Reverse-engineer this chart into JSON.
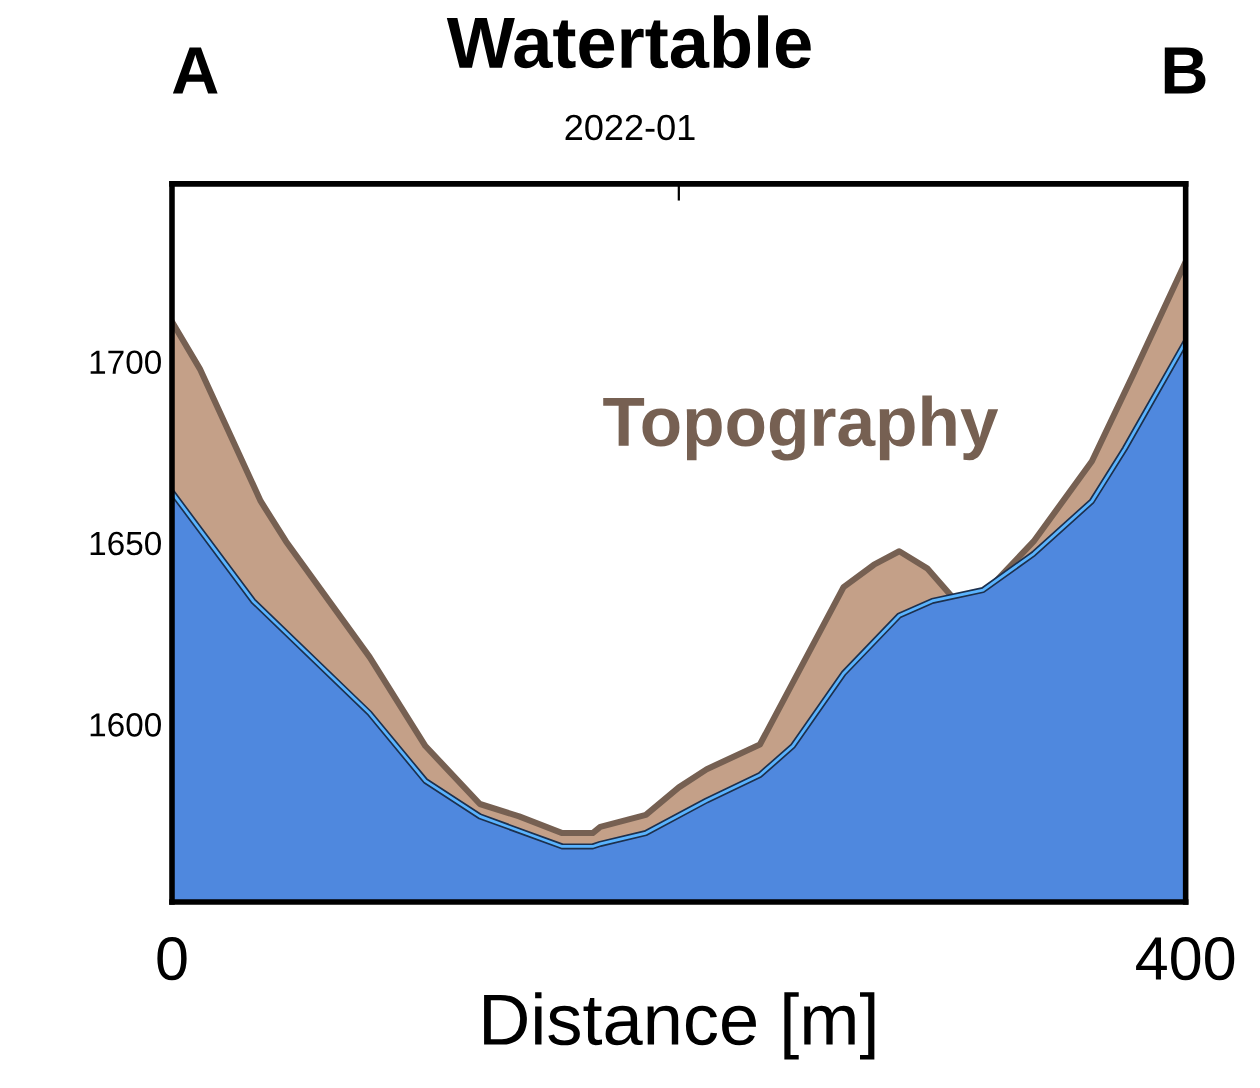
{
  "chart_data": {
    "type": "area",
    "title": "Watertable",
    "subtitle": "2022-01",
    "xlabel": "Distance [m]",
    "annotations": [
      "A",
      "B"
    ],
    "xlim": [
      0,
      400
    ],
    "xticks": [
      0,
      {
        "value": 200,
        "label": null
      },
      400
    ],
    "ylim": [
      1551,
      1749
    ],
    "yticks": [
      1600,
      1650,
      1700
    ],
    "grid": false,
    "legend": false,
    "series": [
      {
        "name": "Topography",
        "color": "#c4a088",
        "x": [
          0,
          11,
          35,
          45,
          78,
          100,
          121.5,
          137,
          154,
          166,
          169,
          187,
          200,
          211,
          232,
          265,
          277,
          287,
          298,
          308,
          320,
          340,
          363,
          379,
          400
        ],
        "values": [
          1711,
          1698,
          1661.5,
          1650.4,
          1618.5,
          1594,
          1578,
          1574.6,
          1570,
          1570,
          1571.7,
          1575,
          1582.6,
          1587.6,
          1594.4,
          1637.8,
          1644,
          1647.7,
          1643,
          1635,
          1635.7,
          1650.4,
          1672.5,
          1696,
          1727.5
        ]
      },
      {
        "color": "#4f88de",
        "x": [
          0,
          32,
          78,
          100,
          121.5,
          154,
          166,
          169,
          187,
          211,
          232,
          245,
          265,
          287,
          300,
          320,
          340,
          363,
          376,
          400
        ],
        "values": [
          1664,
          1634,
          1603,
          1584.4,
          1574.6,
          1566.3,
          1566.3,
          1567,
          1570,
          1579,
          1586,
          1594,
          1614,
          1630,
          1634,
          1637,
          1647,
          1661.5,
          1676,
          1705.5
        ]
      }
    ]
  }
}
